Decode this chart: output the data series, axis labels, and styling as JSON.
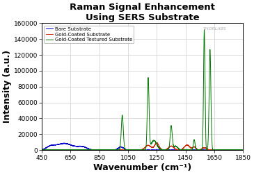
{
  "title": "Raman Signal Enhancement\nUsing SERS Substrate",
  "xlabel": "Wavenumber (cm⁻¹)",
  "ylabel": "Intensity (a.u.)",
  "xlim": [
    450,
    1850
  ],
  "ylim": [
    0,
    160000
  ],
  "yticks": [
    0,
    20000,
    40000,
    60000,
    80000,
    100000,
    120000,
    140000,
    160000
  ],
  "xticks": [
    450,
    650,
    850,
    1050,
    1250,
    1450,
    1650,
    1850
  ],
  "legend": [
    "Bare Substrate",
    "Gold-Coated Substrate",
    "Gold-Coated Textured Substrate"
  ],
  "colors": {
    "bare": "#0000cc",
    "gold_coated": "#cc2200",
    "gold_textured": "#007700"
  },
  "watermark": "THORLABS",
  "background_color": "#ffffff",
  "grid_color": "#cccccc",
  "title_fontsize": 9.5,
  "label_fontsize": 9
}
